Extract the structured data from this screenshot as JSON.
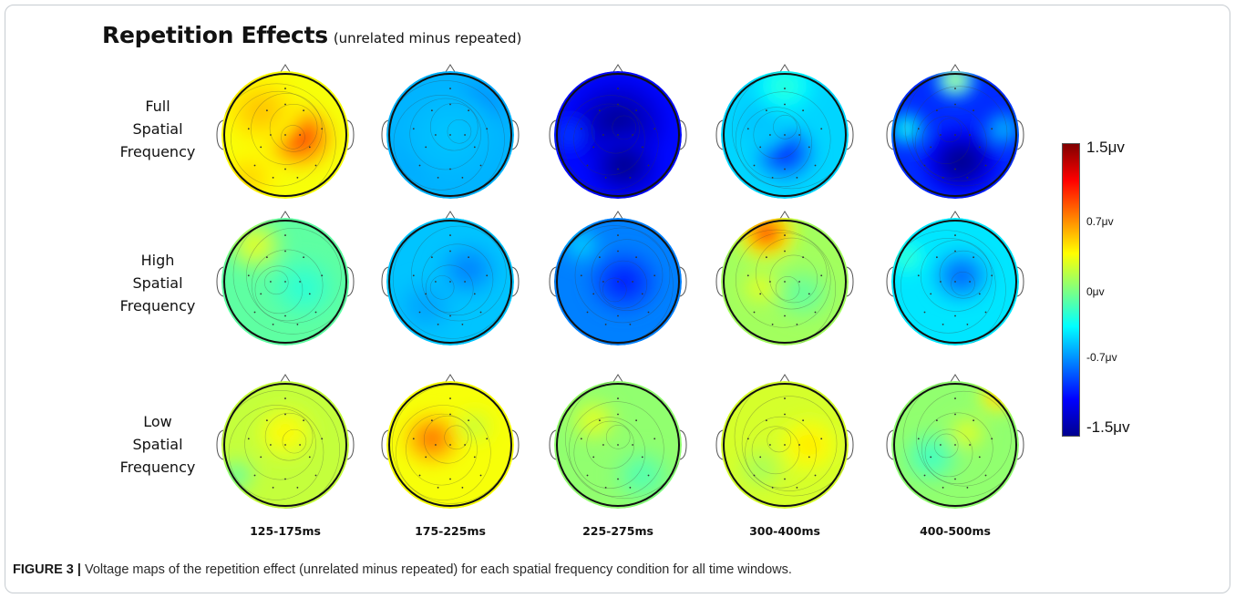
{
  "title": {
    "main": "Repetition Effects",
    "sub": "(unrelated minus repeated)"
  },
  "row_labels": [
    [
      "Full",
      "Spatial",
      "Frequency"
    ],
    [
      "High",
      "Spatial",
      "Frequency"
    ],
    [
      "Low",
      "Spatial",
      "Frequency"
    ]
  ],
  "time_windows": [
    "125-175ms",
    "175-225ms",
    "225-275ms",
    "300-400ms",
    "400-500ms"
  ],
  "colorbar": {
    "max_label": "1.5μv",
    "upper_label": "0.7μv",
    "zero_label": "0μv",
    "lower_label": "-0.7μv",
    "min_label": "-1.5μv",
    "range": [
      -1.5,
      1.5
    ],
    "colors": [
      "#00008f",
      "#0000ff",
      "#0080ff",
      "#00ffff",
      "#80ff80",
      "#ffff00",
      "#ff8000",
      "#ff0000",
      "#800000"
    ]
  },
  "caption": {
    "figure_label": "FIGURE 3 |",
    "text": "Voltage maps of the repetition effect (unrelated minus repeated) for each spatial frequency condition for all time windows."
  },
  "maps": [
    [
      {
        "base": 0.35,
        "blobs": [
          [
            0.62,
            0.52,
            0.35,
            0.95
          ],
          [
            0.3,
            0.3,
            0.4,
            0.55
          ],
          [
            0.2,
            0.85,
            0.3,
            0.5
          ]
        ]
      },
      {
        "base": -0.6,
        "blobs": [
          [
            0.7,
            0.3,
            0.3,
            -0.85
          ],
          [
            0.3,
            0.65,
            0.3,
            -0.7
          ],
          [
            0.5,
            0.5,
            0.5,
            -0.55
          ]
        ]
      },
      {
        "base": -1.1,
        "blobs": [
          [
            0.5,
            0.4,
            0.5,
            -1.45
          ],
          [
            0.55,
            0.75,
            0.35,
            -1.5
          ],
          [
            0.1,
            0.5,
            0.2,
            -0.95
          ]
        ]
      },
      {
        "base": -0.5,
        "blobs": [
          [
            0.5,
            0.65,
            0.3,
            -1.05
          ],
          [
            0.3,
            0.4,
            0.3,
            -0.55
          ],
          [
            0.5,
            0.1,
            0.3,
            -0.25
          ]
        ]
      },
      {
        "base": -1.0,
        "blobs": [
          [
            0.55,
            0.72,
            0.38,
            -1.55
          ],
          [
            0.5,
            0.05,
            0.2,
            0.3
          ],
          [
            0.1,
            0.45,
            0.2,
            -0.3
          ],
          [
            0.9,
            0.45,
            0.2,
            -0.55
          ]
        ]
      }
    ],
    [
      {
        "base": -0.1,
        "blobs": [
          [
            0.25,
            0.2,
            0.3,
            0.3
          ],
          [
            0.65,
            0.55,
            0.35,
            -0.25
          ]
        ]
      },
      {
        "base": -0.55,
        "blobs": [
          [
            0.65,
            0.4,
            0.3,
            -0.75
          ],
          [
            0.3,
            0.7,
            0.3,
            -0.65
          ]
        ]
      },
      {
        "base": -0.75,
        "blobs": [
          [
            0.55,
            0.5,
            0.35,
            -1.05
          ],
          [
            0.2,
            0.2,
            0.2,
            -0.5
          ]
        ]
      },
      {
        "base": 0.1,
        "blobs": [
          [
            0.35,
            0.1,
            0.3,
            0.95
          ],
          [
            0.65,
            0.6,
            0.3,
            -0.1
          ],
          [
            0.3,
            0.55,
            0.2,
            0.3
          ]
        ]
      },
      {
        "base": -0.45,
        "blobs": [
          [
            0.55,
            0.45,
            0.3,
            -0.85
          ],
          [
            0.1,
            0.3,
            0.2,
            -0.2
          ]
        ]
      }
    ],
    [
      {
        "base": 0.2,
        "blobs": [
          [
            0.5,
            0.4,
            0.3,
            0.4
          ],
          [
            0.1,
            0.75,
            0.2,
            -0.1
          ]
        ]
      },
      {
        "base": 0.35,
        "blobs": [
          [
            0.35,
            0.45,
            0.3,
            0.8
          ],
          [
            0.7,
            0.35,
            0.2,
            0.2
          ]
        ]
      },
      {
        "base": 0.05,
        "blobs": [
          [
            0.3,
            0.3,
            0.25,
            0.3
          ],
          [
            0.7,
            0.75,
            0.3,
            -0.15
          ]
        ]
      },
      {
        "base": 0.25,
        "blobs": [
          [
            0.7,
            0.5,
            0.3,
            0.45
          ],
          [
            0.3,
            0.7,
            0.25,
            0.1
          ]
        ]
      },
      {
        "base": 0.05,
        "blobs": [
          [
            0.85,
            0.1,
            0.2,
            0.6
          ],
          [
            0.3,
            0.6,
            0.3,
            -0.2
          ],
          [
            0.6,
            0.4,
            0.2,
            0.3
          ]
        ]
      }
    ]
  ]
}
